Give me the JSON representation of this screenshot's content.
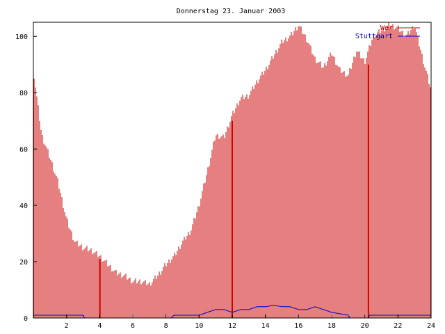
{
  "chart_data": {
    "type": "bar",
    "title": "Donnerstag 23. Januar 2003",
    "xlabel": "",
    "ylabel": "",
    "xlim": [
      0,
      24
    ],
    "ylim": [
      0,
      105
    ],
    "xticks": [
      2,
      4,
      6,
      8,
      10,
      12,
      14,
      16,
      18,
      20,
      22,
      24
    ],
    "yticks": [
      0,
      20,
      40,
      60,
      80,
      100
    ],
    "xtick_labels": [
      "2",
      "4",
      "6",
      "8",
      "10",
      "12",
      "14",
      "16",
      "18",
      "20",
      "22",
      "24"
    ],
    "ytick_labels": [
      "0",
      "20",
      "40",
      "60",
      "80",
      "100"
    ],
    "legend_position": "top-right",
    "series": [
      {
        "name": "Wer",
        "style": "impulses",
        "color": "#cc0000",
        "x": [
          0.0,
          0.5,
          1.0,
          1.5,
          2.0,
          2.5,
          3.0,
          3.5,
          4.0,
          4.5,
          5.0,
          5.5,
          6.0,
          6.5,
          7.0,
          7.5,
          8.0,
          8.5,
          9.0,
          9.5,
          10.0,
          10.5,
          11.0,
          11.5,
          12.0,
          12.5,
          13.0,
          13.5,
          14.0,
          14.5,
          15.0,
          15.5,
          16.0,
          16.5,
          17.0,
          17.5,
          18.0,
          18.5,
          19.0,
          19.5,
          20.0,
          20.5,
          21.0,
          21.5,
          22.0,
          22.5,
          23.0,
          23.5,
          24.0
        ],
        "y": [
          88,
          65,
          57,
          48,
          35,
          27,
          25,
          24,
          22,
          19,
          16,
          15,
          13,
          13,
          12,
          15,
          19,
          22,
          27,
          31,
          40,
          52,
          65,
          64,
          72,
          78,
          79,
          84,
          88,
          93,
          98,
          100,
          104,
          99,
          92,
          89,
          94,
          88,
          86,
          95,
          91,
          100,
          102,
          104,
          103,
          100,
          104,
          92,
          81
        ]
      },
      {
        "name": "Stuttgart",
        "style": "lines",
        "color": "#0000cc",
        "x": [
          0.0,
          3.0,
          3.1,
          8.3,
          8.5,
          10.0,
          10.5,
          11.0,
          11.5,
          12.0,
          12.5,
          13.0,
          13.5,
          14.0,
          14.5,
          15.0,
          15.5,
          16.0,
          16.5,
          17.0,
          17.5,
          18.0,
          18.5,
          19.0,
          19.1,
          20.2,
          20.3,
          24.0
        ],
        "y": [
          1,
          1,
          0,
          0,
          1,
          1,
          2,
          3,
          3,
          2,
          3,
          3,
          4,
          4,
          4.5,
          4,
          4,
          3,
          3,
          4,
          3,
          2,
          1.5,
          1,
          0,
          0,
          1,
          1
        ]
      }
    ],
    "extra_lines": [
      {
        "x": 4.0,
        "y": 21
      },
      {
        "x": 12.0,
        "y": 70
      },
      {
        "x": 20.2,
        "y": 90
      }
    ]
  }
}
